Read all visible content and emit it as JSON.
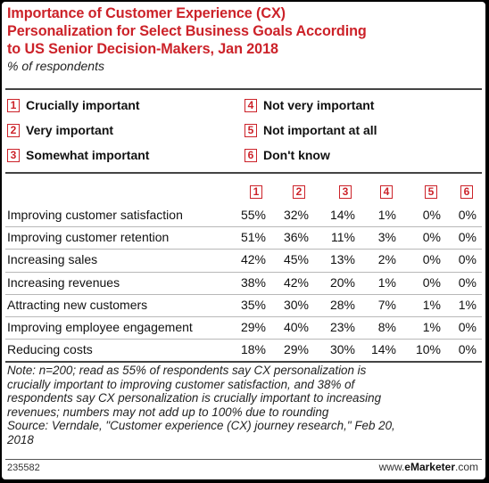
{
  "title": "Importance of Customer Experience (CX)\nPersonalization for Select Business Goals According\nto US Senior Decision-Makers, Jan 2018",
  "subtitle": "% of respondents",
  "legend": [
    {
      "num": "1",
      "label": "Crucially important"
    },
    {
      "num": "2",
      "label": "Very important"
    },
    {
      "num": "3",
      "label": "Somewhat important"
    },
    {
      "num": "4",
      "label": "Not very important"
    },
    {
      "num": "5",
      "label": "Not important at all"
    },
    {
      "num": "6",
      "label": "Don't know"
    }
  ],
  "colors": {
    "accent": "#cc2229"
  },
  "chart_data": {
    "type": "table",
    "columns": [
      "1",
      "2",
      "3",
      "4",
      "5",
      "6"
    ],
    "rows": [
      {
        "label": "Improving customer satisfaction",
        "values": [
          "55%",
          "32%",
          "14%",
          "1%",
          "0%",
          "0%"
        ]
      },
      {
        "label": "Improving customer retention",
        "values": [
          "51%",
          "36%",
          "11%",
          "3%",
          "0%",
          "0%"
        ]
      },
      {
        "label": "Increasing sales",
        "values": [
          "42%",
          "45%",
          "13%",
          "2%",
          "0%",
          "0%"
        ]
      },
      {
        "label": "Increasing revenues",
        "values": [
          "38%",
          "42%",
          "20%",
          "1%",
          "0%",
          "0%"
        ]
      },
      {
        "label": "Attracting new customers",
        "values": [
          "35%",
          "30%",
          "28%",
          "7%",
          "1%",
          "1%"
        ]
      },
      {
        "label": "Improving employee engagement",
        "values": [
          "29%",
          "40%",
          "23%",
          "8%",
          "1%",
          "0%"
        ]
      },
      {
        "label": "Reducing costs",
        "values": [
          "18%",
          "29%",
          "30%",
          "14%",
          "10%",
          "0%"
        ]
      }
    ]
  },
  "note": "Note: n=200; read as 55% of respondents say CX personalization is\ncrucially important to improving customer satisfaction, and 38% of\nrespondents say CX personalization is crucially important to increasing\nrevenues; numbers may not add up to 100% due to rounding\nSource: Verndale, \"Customer experience (CX) journey research,\" Feb 20,\n2018",
  "footer": {
    "id": "235582",
    "brand_prefix": "www.",
    "brand_name": "eMarketer",
    "brand_suffix": ".com"
  }
}
